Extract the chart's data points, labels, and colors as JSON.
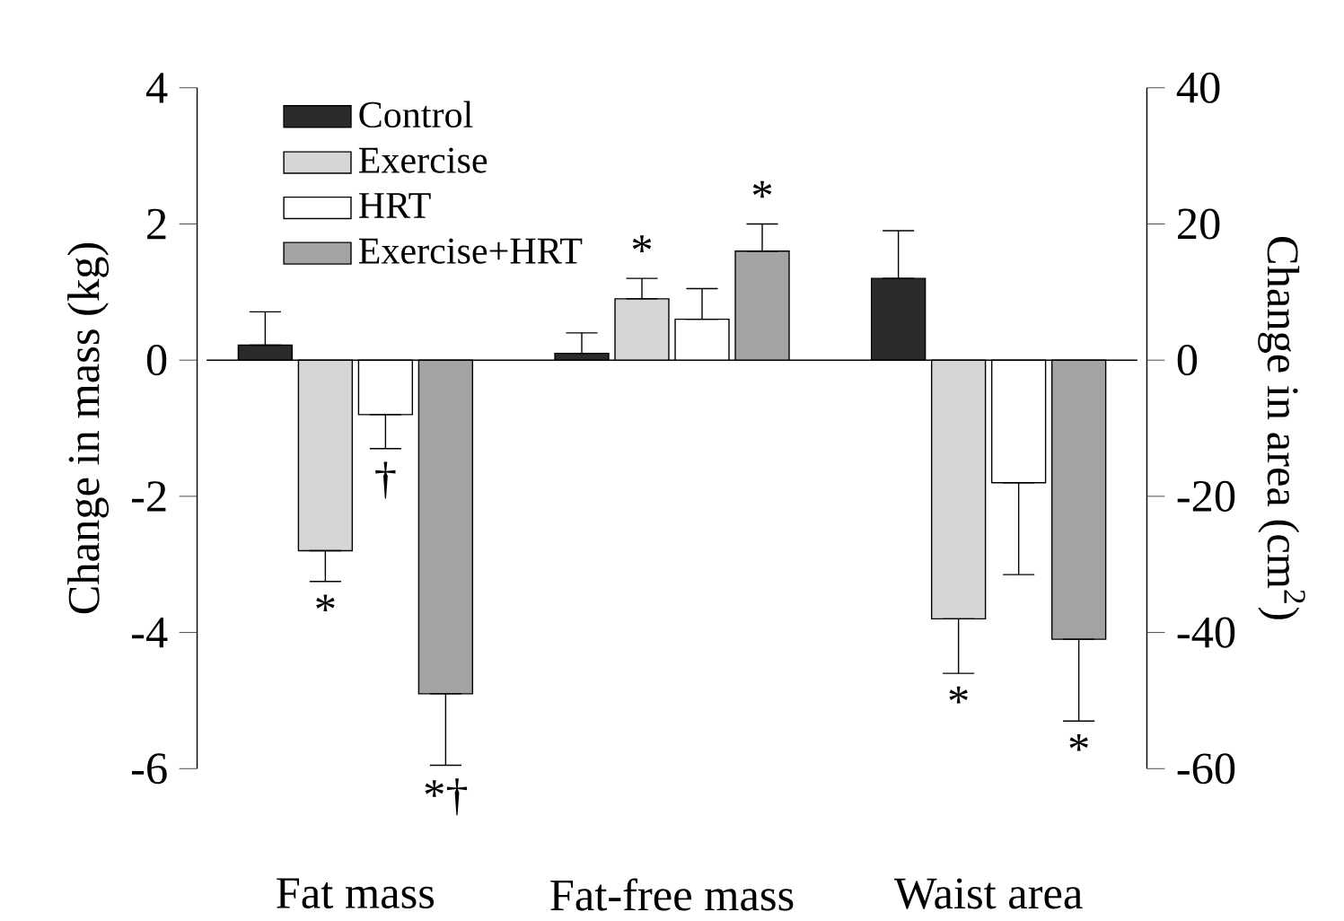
{
  "chart_data": {
    "type": "bar",
    "categories": [
      "Fat mass",
      "Fat-free mass",
      "Waist area"
    ],
    "ylabel": "Change in mass (kg)",
    "y2label": "Change in area (cm$^{2}$)",
    "ylim": [
      -6,
      4
    ],
    "yticks": [
      -6,
      -4,
      -2,
      0,
      2,
      4
    ],
    "y2lim": [
      -60,
      40
    ],
    "y2ticks": [
      -60,
      -40,
      -20,
      0,
      20,
      40
    ],
    "legend": "top left",
    "series": [
      {
        "name": "Control",
        "color": "#2b2b2b",
        "values": [
          0.22,
          0.1,
          null
        ],
        "errors": [
          [
            0.22,
            0.71
          ],
          [
            0.1,
            0.4
          ],
          null
        ]
      },
      {
        "name": "Exercise",
        "color": "#d6d6d6",
        "values": [
          -2.8,
          0.9,
          null
        ],
        "errors": [
          [
            -3.25,
            -2.8
          ],
          [
            0.9,
            1.2
          ],
          null
        ],
        "value_labels": [
          "*",
          "*",
          null
        ]
      },
      {
        "name": "HRT",
        "color": "#ffffff",
        "values": [
          -0.8,
          0.6,
          null
        ],
        "errors": [
          [
            -1.3,
            -0.8
          ],
          [
            0.6,
            1.05
          ],
          null
        ],
        "value_labels": [
          "†",
          null,
          null
        ]
      },
      {
        "name": "Exercise+HRT",
        "color": "#a3a3a3",
        "values": [
          -4.9,
          1.6,
          null
        ],
        "errors": [
          [
            -5.95,
            -4.9
          ],
          [
            1.6,
            2.0
          ],
          null
        ],
        "value_labels": [
          "*†",
          "*",
          null
        ]
      },
      {
        "color": "#2b2b2b",
        "axis": "y2",
        "values": [
          null,
          null,
          12
        ],
        "errors": [
          null,
          null,
          [
            12,
            19
          ]
        ]
      },
      {
        "color": "#d6d6d6",
        "axis": "y2",
        "values": [
          null,
          null,
          -38
        ],
        "errors": [
          null,
          null,
          [
            -46,
            -38
          ]
        ],
        "value_labels": [
          null,
          null,
          "*"
        ]
      },
      {
        "color": "#ffffff",
        "axis": "y2",
        "values": [
          null,
          null,
          -18
        ],
        "errors": [
          null,
          null,
          [
            -31.5,
            -18
          ]
        ]
      },
      {
        "color": "#a3a3a3",
        "axis": "y2",
        "values": [
          null,
          null,
          -41
        ],
        "errors": [
          null,
          null,
          [
            -53,
            -41
          ]
        ],
        "value_labels": [
          null,
          null,
          "*"
        ]
      }
    ]
  }
}
